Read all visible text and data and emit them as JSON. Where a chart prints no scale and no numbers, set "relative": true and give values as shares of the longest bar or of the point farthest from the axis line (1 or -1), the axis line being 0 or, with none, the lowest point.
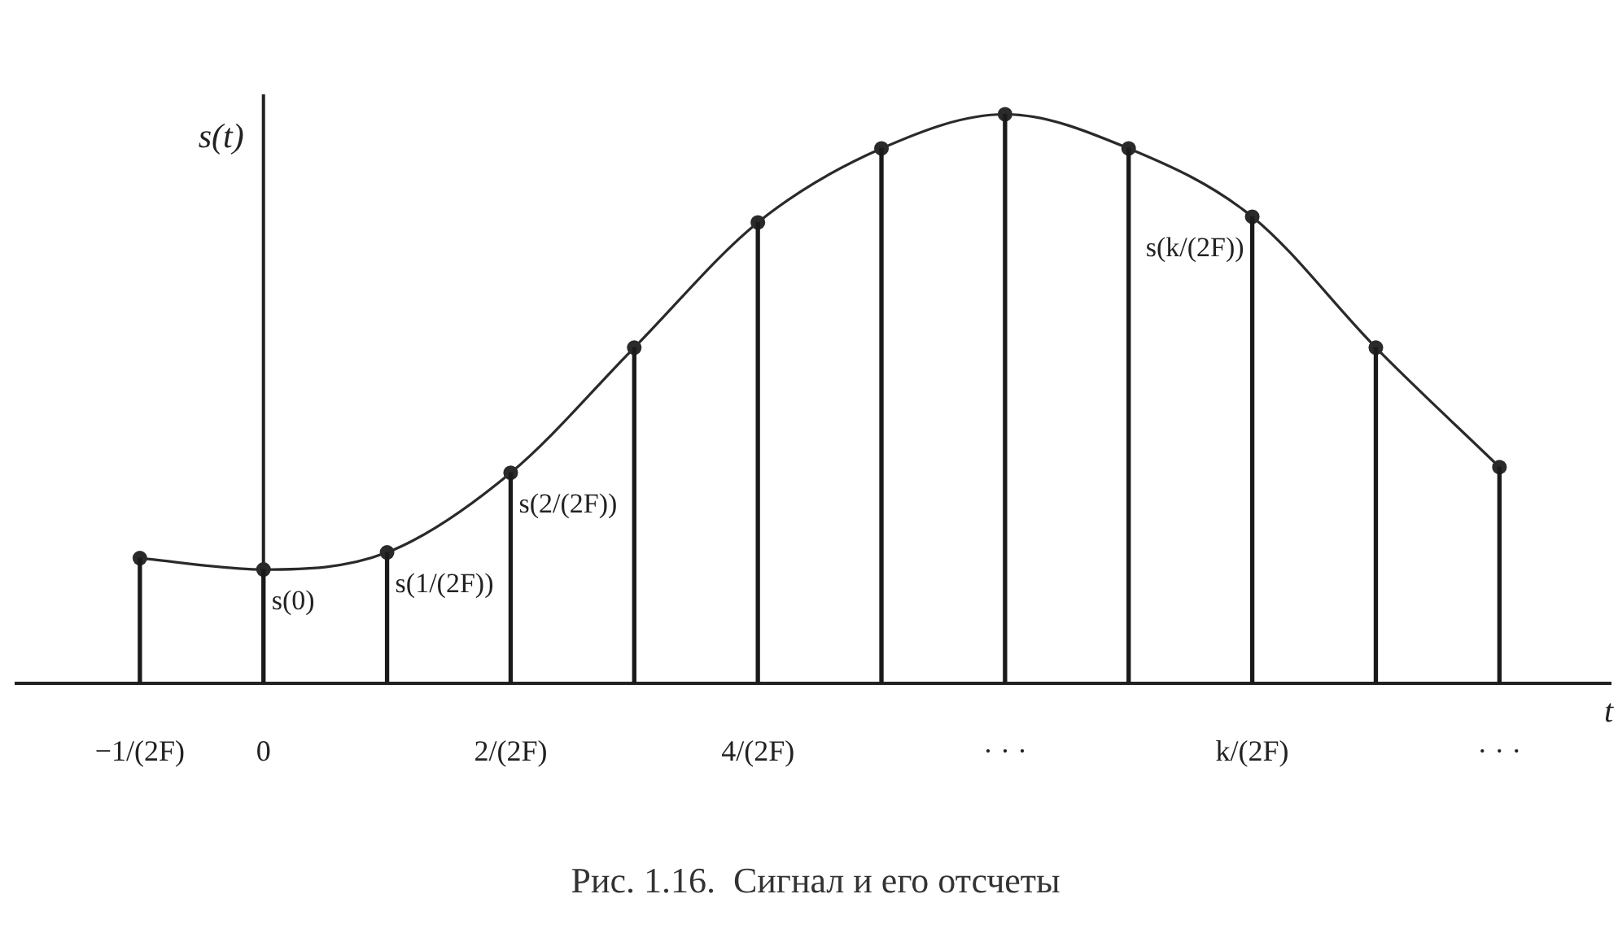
{
  "chart_data": {
    "type": "line",
    "title": "Рис. 1.16.  Сигнал и его отсчеты",
    "xlabel": "t",
    "ylabel": "s(t)",
    "relative": true,
    "categories": [
      "−1/(2F)",
      "0",
      null,
      "2/(2F)",
      null,
      "4/(2F)",
      null,
      "· · ·",
      null,
      "k/(2F)",
      null,
      "· · ·"
    ],
    "series": [
      {
        "color": "#2a2a2a",
        "marker": "circle",
        "values": [
          0.22,
          0.2,
          0.23,
          0.37,
          0.59,
          0.81,
          0.94,
          1,
          0.94,
          0.82,
          0.59,
          0.38
        ]
      },
      {
        "type": "bar",
        "color": "#1a1a1a",
        "values": [
          0.22,
          0.2,
          0.23,
          0.37,
          0.59,
          0.81,
          0.94,
          1,
          0.94,
          0.82,
          0.59,
          0.38
        ]
      }
    ],
    "annotations": [
      {
        "text": "s(0)",
        "x": "0",
        "y": 0.2
      },
      "s(1/(2F))",
      {
        "text": "s(2/(2F))",
        "x": "2/(2F)",
        "y": 0.37
      },
      {
        "text": "s(k/(2F))",
        "x": "k/(2F)",
        "y": 0.82
      }
    ],
    "ref_lines": [
      {
        "axis": "x",
        "value": "0",
        "color": "#222222"
      }
    ]
  }
}
